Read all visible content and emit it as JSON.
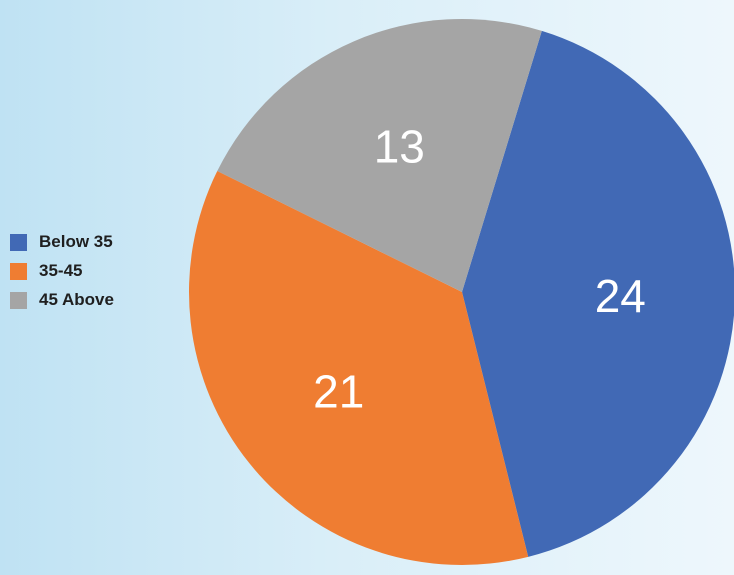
{
  "chart_data": {
    "type": "pie",
    "title": "",
    "categories": [
      "Below 35",
      "35-45",
      "45 Above"
    ],
    "values": [
      24,
      21,
      13
    ],
    "colors": [
      "#4169b5",
      "#ef7d32",
      "#a5a5a5"
    ],
    "start_angle_deg": 17,
    "direction": "clockwise",
    "legend": {
      "position": "left",
      "entries": [
        "Below 35",
        "35-45",
        "45 Above"
      ]
    },
    "data_labels": [
      "24",
      "21",
      "13"
    ]
  }
}
